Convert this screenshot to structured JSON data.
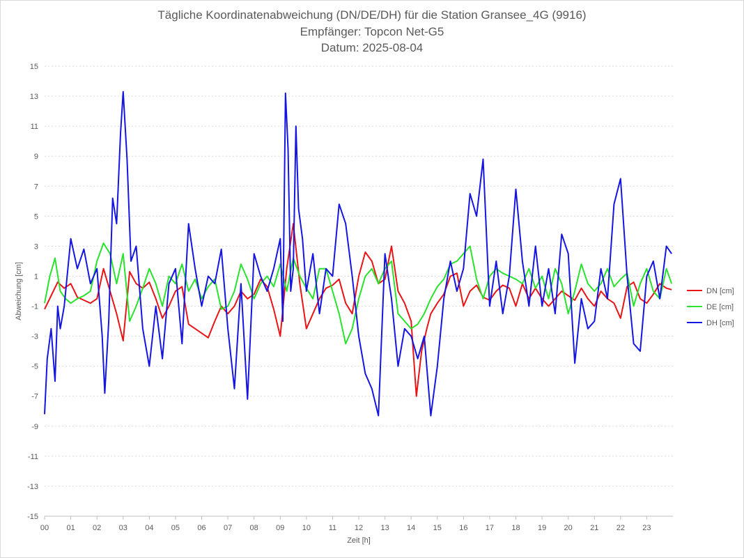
{
  "chart": {
    "title_line1": "Tägliche Koordinatenabweichung (DN/DE/DH) für die Station Gransee_4G (9916)",
    "title_line2": "Empfänger: Topcon Net-G5",
    "title_line3": "Datum: 2025-08-04"
  },
  "chart_data": {
    "type": "line",
    "title": "Tägliche Koordinatenabweichung (DN/DE/DH) für die Station Gransee_4G (9916)",
    "subtitle": [
      "Empfänger: Topcon Net-G5",
      "Datum: 2025-08-04"
    ],
    "xlabel": "Zeit [h]",
    "ylabel": "Abweichung [cm]",
    "xlim": [
      0,
      24
    ],
    "ylim": [
      -15,
      15
    ],
    "x_ticks": [
      "00",
      "01",
      "02",
      "03",
      "04",
      "05",
      "06",
      "07",
      "08",
      "09",
      "10",
      "11",
      "12",
      "13",
      "14",
      "15",
      "16",
      "17",
      "18",
      "19",
      "20",
      "21",
      "22",
      "23"
    ],
    "y_ticks": [
      15,
      13,
      11,
      9,
      7,
      5,
      3,
      1,
      -1,
      -3,
      -5,
      -7,
      -9,
      -11,
      -13,
      -15
    ],
    "grid": "horizontal dotted",
    "legend_position": "right",
    "series": [
      {
        "name": "DN [cm]",
        "color": "#e81416",
        "points": [
          [
            0.0,
            -1.2
          ],
          [
            0.25,
            -0.3
          ],
          [
            0.5,
            0.6
          ],
          [
            0.75,
            0.2
          ],
          [
            1.0,
            0.5
          ],
          [
            1.25,
            -0.4
          ],
          [
            1.5,
            -0.6
          ],
          [
            1.75,
            -0.8
          ],
          [
            2.0,
            -0.5
          ],
          [
            2.25,
            1.5
          ],
          [
            2.5,
            0.0
          ],
          [
            2.75,
            -1.5
          ],
          [
            3.0,
            -3.3
          ],
          [
            3.25,
            1.3
          ],
          [
            3.5,
            0.5
          ],
          [
            3.75,
            0.2
          ],
          [
            4.0,
            0.6
          ],
          [
            4.25,
            -0.5
          ],
          [
            4.5,
            -1.8
          ],
          [
            4.75,
            -1.0
          ],
          [
            5.0,
            0.0
          ],
          [
            5.25,
            0.3
          ],
          [
            5.5,
            -2.2
          ],
          [
            5.75,
            -2.5
          ],
          [
            6.0,
            -2.8
          ],
          [
            6.25,
            -3.1
          ],
          [
            6.5,
            -2.0
          ],
          [
            6.75,
            -1.0
          ],
          [
            7.0,
            -1.5
          ],
          [
            7.25,
            -1.0
          ],
          [
            7.5,
            0.0
          ],
          [
            7.75,
            -0.5
          ],
          [
            8.0,
            -0.2
          ],
          [
            8.25,
            0.8
          ],
          [
            8.5,
            0.3
          ],
          [
            8.75,
            -1.2
          ],
          [
            9.0,
            -3.0
          ],
          [
            9.25,
            1.5
          ],
          [
            9.5,
            4.5
          ],
          [
            9.75,
            0.5
          ],
          [
            10.0,
            -2.5
          ],
          [
            10.25,
            -1.5
          ],
          [
            10.5,
            -0.5
          ],
          [
            10.75,
            0.2
          ],
          [
            11.0,
            0.4
          ],
          [
            11.25,
            0.8
          ],
          [
            11.5,
            -0.8
          ],
          [
            11.75,
            -1.5
          ],
          [
            12.0,
            1.0
          ],
          [
            12.25,
            2.6
          ],
          [
            12.5,
            2.0
          ],
          [
            12.75,
            0.5
          ],
          [
            13.0,
            0.8
          ],
          [
            13.25,
            3.0
          ],
          [
            13.5,
            0.0
          ],
          [
            13.75,
            -0.8
          ],
          [
            14.0,
            -2.0
          ],
          [
            14.2,
            -7.0
          ],
          [
            14.4,
            -4.0
          ],
          [
            14.6,
            -2.5
          ],
          [
            14.75,
            -1.5
          ],
          [
            15.0,
            -0.8
          ],
          [
            15.25,
            -0.2
          ],
          [
            15.5,
            1.0
          ],
          [
            15.75,
            1.2
          ],
          [
            16.0,
            -1.0
          ],
          [
            16.25,
            0.0
          ],
          [
            16.5,
            0.4
          ],
          [
            16.75,
            -0.4
          ],
          [
            17.0,
            -0.6
          ],
          [
            17.25,
            0.0
          ],
          [
            17.5,
            0.4
          ],
          [
            17.75,
            0.2
          ],
          [
            18.0,
            -1.0
          ],
          [
            18.25,
            0.5
          ],
          [
            18.5,
            -0.5
          ],
          [
            18.75,
            0.2
          ],
          [
            19.0,
            -0.5
          ],
          [
            19.25,
            -1.0
          ],
          [
            19.5,
            -0.5
          ],
          [
            19.75,
            0.0
          ],
          [
            20.0,
            -0.3
          ],
          [
            20.25,
            -0.6
          ],
          [
            20.5,
            0.2
          ],
          [
            20.75,
            -0.5
          ],
          [
            21.0,
            -1.0
          ],
          [
            21.25,
            0.0
          ],
          [
            21.5,
            -0.5
          ],
          [
            21.75,
            -0.8
          ],
          [
            22.0,
            -1.8
          ],
          [
            22.25,
            0.3
          ],
          [
            22.5,
            0.6
          ],
          [
            22.75,
            -0.5
          ],
          [
            23.0,
            -0.8
          ],
          [
            23.25,
            -0.2
          ],
          [
            23.5,
            0.5
          ],
          [
            23.75,
            0.2
          ],
          [
            23.95,
            0.1
          ]
        ]
      },
      {
        "name": "DE [cm]",
        "color": "#29e22d",
        "points": [
          [
            0.0,
            -0.8
          ],
          [
            0.2,
            1.0
          ],
          [
            0.4,
            2.2
          ],
          [
            0.6,
            0.0
          ],
          [
            0.8,
            -0.5
          ],
          [
            1.0,
            -0.8
          ],
          [
            1.25,
            -0.5
          ],
          [
            1.5,
            -0.3
          ],
          [
            1.75,
            0.0
          ],
          [
            2.0,
            2.0
          ],
          [
            2.25,
            3.2
          ],
          [
            2.5,
            2.5
          ],
          [
            2.75,
            0.5
          ],
          [
            3.0,
            2.5
          ],
          [
            3.25,
            -2.0
          ],
          [
            3.5,
            -1.0
          ],
          [
            3.75,
            0.2
          ],
          [
            4.0,
            1.5
          ],
          [
            4.25,
            0.5
          ],
          [
            4.5,
            -1.0
          ],
          [
            4.75,
            1.0
          ],
          [
            5.0,
            0.5
          ],
          [
            5.25,
            1.8
          ],
          [
            5.5,
            0.0
          ],
          [
            5.75,
            0.8
          ],
          [
            6.0,
            -0.5
          ],
          [
            6.25,
            0.3
          ],
          [
            6.5,
            0.8
          ],
          [
            6.75,
            -1.2
          ],
          [
            7.0,
            -1.0
          ],
          [
            7.25,
            0.0
          ],
          [
            7.5,
            1.8
          ],
          [
            7.75,
            0.8
          ],
          [
            8.0,
            -0.5
          ],
          [
            8.25,
            0.5
          ],
          [
            8.5,
            1.0
          ],
          [
            8.75,
            0.3
          ],
          [
            9.0,
            1.8
          ],
          [
            9.25,
            0.0
          ],
          [
            9.5,
            2.2
          ],
          [
            9.75,
            1.0
          ],
          [
            10.0,
            0.2
          ],
          [
            10.25,
            -0.5
          ],
          [
            10.5,
            1.5
          ],
          [
            10.75,
            1.5
          ],
          [
            11.0,
            0.0
          ],
          [
            11.25,
            -1.5
          ],
          [
            11.5,
            -3.5
          ],
          [
            11.75,
            -2.5
          ],
          [
            12.0,
            -0.5
          ],
          [
            12.25,
            1.0
          ],
          [
            12.5,
            1.5
          ],
          [
            12.75,
            0.5
          ],
          [
            13.0,
            1.5
          ],
          [
            13.25,
            2.0
          ],
          [
            13.5,
            -1.5
          ],
          [
            13.75,
            -2.0
          ],
          [
            14.0,
            -2.5
          ],
          [
            14.25,
            -2.2
          ],
          [
            14.5,
            -1.5
          ],
          [
            14.75,
            -0.5
          ],
          [
            15.0,
            0.3
          ],
          [
            15.25,
            0.8
          ],
          [
            15.5,
            1.8
          ],
          [
            15.75,
            2.0
          ],
          [
            16.0,
            2.5
          ],
          [
            16.25,
            3.0
          ],
          [
            16.5,
            0.8
          ],
          [
            16.75,
            -0.5
          ],
          [
            17.0,
            1.0
          ],
          [
            17.25,
            1.5
          ],
          [
            17.5,
            1.2
          ],
          [
            17.75,
            1.0
          ],
          [
            18.0,
            0.8
          ],
          [
            18.25,
            0.5
          ],
          [
            18.5,
            1.5
          ],
          [
            18.75,
            0.2
          ],
          [
            19.0,
            1.0
          ],
          [
            19.25,
            -0.5
          ],
          [
            19.5,
            1.5
          ],
          [
            19.75,
            0.5
          ],
          [
            20.0,
            -1.5
          ],
          [
            20.25,
            0.0
          ],
          [
            20.5,
            1.8
          ],
          [
            20.75,
            0.5
          ],
          [
            21.0,
            0.0
          ],
          [
            21.25,
            0.5
          ],
          [
            21.5,
            1.5
          ],
          [
            21.75,
            0.3
          ],
          [
            22.0,
            0.8
          ],
          [
            22.25,
            1.2
          ],
          [
            22.5,
            -1.0
          ],
          [
            22.75,
            0.5
          ],
          [
            23.0,
            1.5
          ],
          [
            23.25,
            0.0
          ],
          [
            23.5,
            -0.5
          ],
          [
            23.75,
            1.5
          ],
          [
            23.95,
            0.5
          ]
        ]
      },
      {
        "name": "DH [cm]",
        "color": "#1515e1",
        "points": [
          [
            0.0,
            -8.2
          ],
          [
            0.1,
            -4.5
          ],
          [
            0.25,
            -2.5
          ],
          [
            0.4,
            -6.0
          ],
          [
            0.5,
            -1.0
          ],
          [
            0.6,
            -2.5
          ],
          [
            0.75,
            -1.0
          ],
          [
            1.0,
            3.5
          ],
          [
            1.25,
            1.5
          ],
          [
            1.5,
            2.8
          ],
          [
            1.75,
            0.5
          ],
          [
            2.0,
            1.5
          ],
          [
            2.2,
            -3.0
          ],
          [
            2.3,
            -6.8
          ],
          [
            2.45,
            -2.0
          ],
          [
            2.6,
            6.2
          ],
          [
            2.75,
            4.5
          ],
          [
            2.9,
            10.5
          ],
          [
            3.0,
            13.3
          ],
          [
            3.15,
            8.8
          ],
          [
            3.3,
            2.0
          ],
          [
            3.5,
            3.0
          ],
          [
            3.75,
            -2.5
          ],
          [
            4.0,
            -5.0
          ],
          [
            4.25,
            -1.0
          ],
          [
            4.5,
            -4.5
          ],
          [
            4.75,
            0.5
          ],
          [
            5.0,
            1.5
          ],
          [
            5.25,
            -3.5
          ],
          [
            5.5,
            4.5
          ],
          [
            5.75,
            1.5
          ],
          [
            6.0,
            -1.0
          ],
          [
            6.25,
            1.0
          ],
          [
            6.5,
            0.5
          ],
          [
            6.75,
            2.8
          ],
          [
            7.0,
            -2.5
          ],
          [
            7.25,
            -6.5
          ],
          [
            7.5,
            0.5
          ],
          [
            7.75,
            -7.2
          ],
          [
            8.0,
            2.5
          ],
          [
            8.25,
            1.0
          ],
          [
            8.5,
            0.0
          ],
          [
            8.75,
            1.5
          ],
          [
            9.0,
            3.5
          ],
          [
            9.1,
            -2.0
          ],
          [
            9.2,
            13.2
          ],
          [
            9.3,
            9.5
          ],
          [
            9.4,
            0.0
          ],
          [
            9.5,
            1.5
          ],
          [
            9.6,
            11.0
          ],
          [
            9.7,
            5.5
          ],
          [
            9.85,
            3.5
          ],
          [
            10.0,
            0.0
          ],
          [
            10.25,
            2.5
          ],
          [
            10.5,
            -1.5
          ],
          [
            10.75,
            1.5
          ],
          [
            11.0,
            1.0
          ],
          [
            11.25,
            5.8
          ],
          [
            11.5,
            4.5
          ],
          [
            11.75,
            1.0
          ],
          [
            12.0,
            -3.0
          ],
          [
            12.25,
            -5.5
          ],
          [
            12.5,
            -6.5
          ],
          [
            12.75,
            -8.3
          ],
          [
            13.0,
            2.5
          ],
          [
            13.25,
            -0.5
          ],
          [
            13.5,
            -5.0
          ],
          [
            13.75,
            -2.5
          ],
          [
            14.0,
            -3.0
          ],
          [
            14.25,
            -4.5
          ],
          [
            14.5,
            -3.0
          ],
          [
            14.75,
            -8.3
          ],
          [
            15.0,
            -5.0
          ],
          [
            15.25,
            -0.5
          ],
          [
            15.5,
            2.0
          ],
          [
            15.75,
            0.0
          ],
          [
            16.0,
            1.5
          ],
          [
            16.25,
            6.5
          ],
          [
            16.5,
            5.0
          ],
          [
            16.75,
            8.8
          ],
          [
            17.0,
            -1.0
          ],
          [
            17.25,
            2.0
          ],
          [
            17.5,
            -1.5
          ],
          [
            17.75,
            1.0
          ],
          [
            18.0,
            6.8
          ],
          [
            18.25,
            2.0
          ],
          [
            18.5,
            -1.0
          ],
          [
            18.75,
            3.0
          ],
          [
            19.0,
            -1.0
          ],
          [
            19.25,
            1.5
          ],
          [
            19.5,
            -1.5
          ],
          [
            19.75,
            3.8
          ],
          [
            20.0,
            2.5
          ],
          [
            20.25,
            -4.8
          ],
          [
            20.5,
            -0.5
          ],
          [
            20.75,
            -2.5
          ],
          [
            21.0,
            -2.0
          ],
          [
            21.25,
            1.5
          ],
          [
            21.5,
            -0.5
          ],
          [
            21.75,
            5.8
          ],
          [
            22.0,
            7.5
          ],
          [
            22.25,
            1.0
          ],
          [
            22.5,
            -3.5
          ],
          [
            22.75,
            -4.0
          ],
          [
            23.0,
            1.0
          ],
          [
            23.25,
            2.0
          ],
          [
            23.5,
            -0.5
          ],
          [
            23.75,
            3.0
          ],
          [
            23.95,
            2.5
          ]
        ]
      }
    ]
  }
}
